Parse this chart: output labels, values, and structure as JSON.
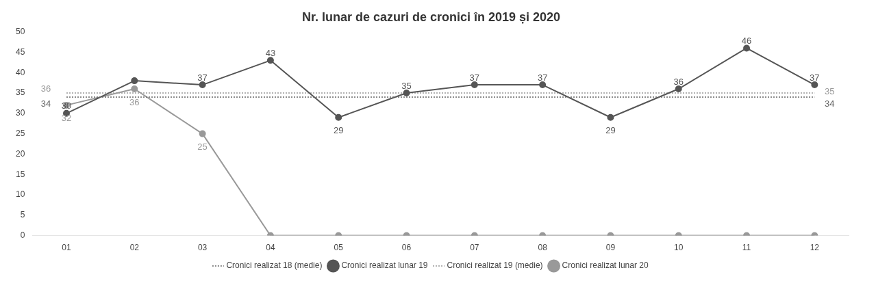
{
  "chart_data": {
    "type": "line",
    "title": "Nr. lunar de cazuri de cronici în 2019 și 2020",
    "categories": [
      "01",
      "02",
      "03",
      "04",
      "05",
      "06",
      "07",
      "08",
      "09",
      "10",
      "11",
      "12"
    ],
    "annotations": [
      "36"
    ],
    "ylim": [
      0,
      50
    ],
    "yticks": [
      0,
      5,
      10,
      15,
      20,
      25,
      30,
      35,
      40,
      45,
      50
    ],
    "grid": false,
    "legend": "bottom",
    "marker": "circle",
    "series": [
      {
        "name": "Cronici realizat 18 (medie)",
        "color": "#666666",
        "line_style": "dotted",
        "marker": "none",
        "values": [
          34,
          34,
          34,
          34,
          34,
          34,
          34,
          34,
          34,
          34,
          34,
          34
        ],
        "value_labels": [
          "34",
          null,
          null,
          null,
          null,
          null,
          null,
          null,
          null,
          null,
          null,
          "34"
        ]
      },
      {
        "name": "Cronici realizat lunar 19",
        "color": "#555555",
        "line_style": "solid",
        "values": [
          30,
          38,
          37,
          43,
          29,
          35,
          37,
          37,
          29,
          36,
          46,
          37
        ],
        "value_labels": [
          "30",
          null,
          "37",
          "43",
          "29",
          "35",
          "37",
          "37",
          "29",
          "36",
          "46",
          "37"
        ]
      },
      {
        "name": "Cronici realizat 19 (medie)",
        "color": "#999999",
        "line_style": "dotted",
        "marker": "none",
        "values": [
          35,
          35,
          35,
          35,
          35,
          35,
          35,
          35,
          35,
          35,
          35,
          35
        ],
        "value_labels": [
          null,
          null,
          null,
          null,
          null,
          null,
          null,
          null,
          null,
          null,
          null,
          "35"
        ]
      },
      {
        "name": "Cronici realizat lunar 20",
        "color": "#999999",
        "line_style": "solid",
        "values": [
          32,
          36,
          25,
          0,
          0,
          0,
          0,
          0,
          0,
          0,
          0,
          0
        ],
        "value_labels": [
          "32",
          "36",
          "25",
          null,
          null,
          null,
          null,
          null,
          null,
          null,
          null,
          null
        ]
      }
    ]
  }
}
